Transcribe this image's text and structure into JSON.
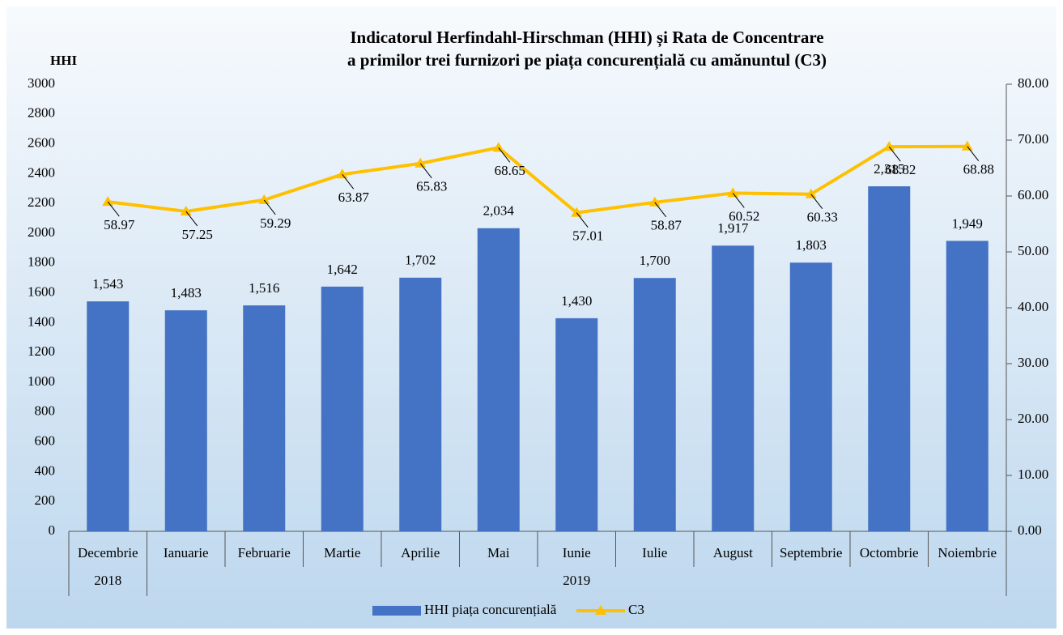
{
  "chart_data": {
    "type": "bar",
    "title": [
      "Indicatorul Herfindahl-Hirschman (HHI) și Rata de Concentrare",
      "a primilor trei furnizori pe piața concurențială cu amănuntul (C3)"
    ],
    "y_axis_label": "HHI",
    "categories": [
      "Decembrie",
      "Ianuarie",
      "Februarie",
      "Martie",
      "Aprilie",
      "Mai",
      "Iunie",
      "Iulie",
      "August",
      "Septembrie",
      "Octombrie",
      "Noiembrie"
    ],
    "x_groups": [
      {
        "label": "2018",
        "span": 1
      },
      {
        "label": "2019",
        "span": 11
      }
    ],
    "series": [
      {
        "name": "HHI piața concurențială",
        "type": "bar",
        "color": "#4472c4",
        "values": [
          1543,
          1483,
          1516,
          1642,
          1702,
          2034,
          1430,
          1700,
          1917,
          1803,
          2315,
          1949
        ],
        "value_labels": [
          "1,543",
          "1,483",
          "1,516",
          "1,642",
          "1,702",
          "2,034",
          "1,430",
          "1,700",
          "1,917",
          "1,803",
          "2,315",
          "1,949"
        ]
      },
      {
        "name": "C3",
        "type": "line",
        "axis": "y2",
        "color": "#ffc000",
        "values": [
          58.97,
          57.25,
          59.29,
          63.87,
          65.83,
          68.65,
          57.01,
          58.87,
          60.52,
          60.33,
          68.82,
          68.88
        ]
      }
    ],
    "ylim": [
      0,
      3000
    ],
    "yticks": [
      0,
      200,
      400,
      600,
      800,
      1000,
      1200,
      1400,
      1600,
      1800,
      2000,
      2200,
      2400,
      2600,
      2800,
      3000
    ],
    "y2lim": [
      0,
      80
    ],
    "y2ticks": [
      {
        "value": 0,
        "label": "0.00"
      },
      {
        "value": 10,
        "label": "10.00"
      },
      {
        "value": 20,
        "label": "20.00"
      },
      {
        "value": 30,
        "label": "30.00"
      },
      {
        "value": 40,
        "label": "40.00"
      },
      {
        "value": 50,
        "label": "50.00"
      },
      {
        "value": 60,
        "label": "60.00"
      },
      {
        "value": 70,
        "label": "70.00"
      },
      {
        "value": 80,
        "label": "80.00"
      }
    ],
    "legend": "bottom"
  }
}
